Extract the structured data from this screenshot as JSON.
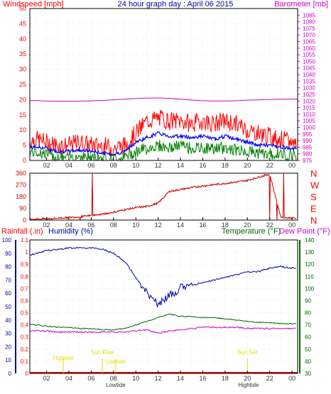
{
  "title": "24 hour graph day : April 06 2015",
  "colors": {
    "frame": "#000000",
    "grid": "#dddddd",
    "wind": "#ff0000",
    "gust_mid": "#0000ff",
    "wind_low": "#008000",
    "barometer": "#cc00cc",
    "direction": "#cc0000",
    "rainfall": "#ff0000",
    "humidity": "#0000aa",
    "temperature": "#006600",
    "dewpoint": "#cc00cc",
    "tide": "#dddd00"
  },
  "chart_data": [
    {
      "type": "line",
      "panel": "wind_barometer",
      "ylabel_left": "Windspeed [mph]",
      "ylabel_right": "Barometer [mb]",
      "ylim_left": [
        0,
        50
      ],
      "ylim_right": [
        975,
        1090
      ],
      "left_ticks": [
        "0",
        "5",
        "10",
        "15",
        "20",
        "25",
        "30",
        "35",
        "40",
        "45",
        "50"
      ],
      "right_ticks": [
        "975",
        "980",
        "985",
        "990",
        "995",
        "1000",
        "1005",
        "1010",
        "1015",
        "1020",
        "1025",
        "1030",
        "1035",
        "1040",
        "1045",
        "1050",
        "1055",
        "1060",
        "1065",
        "1070",
        "1075",
        "1080",
        "1085"
      ],
      "x_ticks": [
        "02",
        "04",
        "06",
        "08",
        "10",
        "12",
        "14",
        "16",
        "18",
        "20",
        "22",
        "00"
      ],
      "series": [
        {
          "key": "barometer",
          "axis": "right",
          "x": [
            0,
            1,
            2,
            3,
            4,
            5,
            6,
            7,
            8,
            9,
            10,
            11,
            12,
            13,
            14,
            15,
            16,
            17,
            18,
            19,
            20,
            21,
            22,
            23,
            24
          ],
          "values": [
            1020.5,
            1020.3,
            1020.0,
            1019.8,
            1019.8,
            1019.9,
            1020.1,
            1020.4,
            1020.9,
            1021.4,
            1021.9,
            1022.2,
            1022.3,
            1022.0,
            1021.4,
            1020.7,
            1020.2,
            1020.0,
            1020.0,
            1020.2,
            1020.6,
            1020.9,
            1021.1,
            1021.3,
            1021.5
          ]
        },
        {
          "key": "gust",
          "axis": "left",
          "x": [
            0,
            1,
            2,
            3,
            4,
            5,
            6,
            7,
            8,
            9,
            10,
            11,
            12,
            13,
            14,
            15,
            16,
            17,
            18,
            19,
            20,
            21,
            22,
            23,
            24
          ],
          "values": [
            6,
            7,
            6,
            5,
            5,
            6,
            5,
            5,
            4,
            5,
            9,
            13,
            14,
            13,
            13,
            12,
            13,
            12,
            13,
            12,
            10,
            9,
            8,
            7,
            6
          ]
        },
        {
          "key": "average",
          "axis": "left",
          "x": [
            0,
            1,
            2,
            3,
            4,
            5,
            6,
            7,
            8,
            9,
            10,
            11,
            12,
            13,
            14,
            15,
            16,
            17,
            18,
            19,
            20,
            21,
            22,
            23,
            24
          ],
          "values": [
            4,
            4.5,
            4,
            3,
            3,
            3.5,
            3,
            2.5,
            2,
            3,
            6,
            7.5,
            9,
            8,
            8,
            7.5,
            8,
            7,
            8,
            7,
            6,
            5,
            5,
            4.5,
            4
          ]
        },
        {
          "key": "wind_low",
          "axis": "left",
          "x": [
            0,
            1,
            2,
            3,
            4,
            5,
            6,
            7,
            8,
            9,
            10,
            11,
            12,
            13,
            14,
            15,
            16,
            17,
            18,
            19,
            20,
            21,
            22,
            23,
            24
          ],
          "values": [
            2,
            3,
            2,
            1,
            1,
            1.5,
            1,
            1,
            0.5,
            1,
            3,
            4,
            5,
            4,
            5,
            4,
            4,
            4,
            4,
            3.5,
            3,
            2.5,
            2,
            2,
            2
          ]
        }
      ]
    },
    {
      "type": "line",
      "panel": "wind_direction",
      "ylim": [
        0,
        360
      ],
      "left_ticks": [
        "0",
        "90",
        "180",
        "270",
        "360"
      ],
      "right_ticks": [
        "N",
        "W",
        "S",
        "E",
        "N"
      ],
      "x_ticks": [
        "02",
        "04",
        "06",
        "08",
        "10",
        "12",
        "14",
        "16",
        "18",
        "20",
        "22",
        "00"
      ],
      "series": [
        {
          "key": "direction",
          "x": [
            0,
            1,
            2,
            3,
            4,
            5,
            6,
            7,
            8,
            9,
            10,
            11,
            12,
            13,
            14,
            15,
            16,
            17,
            18,
            19,
            20,
            21,
            22,
            23,
            24
          ],
          "values": [
            5,
            8,
            10,
            15,
            20,
            25,
            35,
            45,
            60,
            80,
            95,
            105,
            130,
            220,
            235,
            250,
            262,
            272,
            282,
            292,
            305,
            330,
            355,
            20,
            15
          ]
        }
      ]
    },
    {
      "type": "line",
      "panel": "rain_humidity_temp",
      "labels": {
        "rainfall": "Rainfall (.in)",
        "humidity": "Humidity (%)",
        "temperature": "Temperature (°F)",
        "dewpoint": "Dew Point (°F)"
      },
      "ylim_left_rain": [
        0,
        1.1
      ],
      "ylim_left_humidity": [
        0,
        100
      ],
      "ylim_right": [
        30,
        140
      ],
      "left_ticks_rain": [
        "0",
        "0.1",
        "0.2",
        "0.3",
        "0.4",
        "0.5",
        "0.6",
        "0.7",
        "0.8",
        "0.9",
        "1",
        "1.1"
      ],
      "left_ticks_humidity": [
        "0",
        "10",
        "20",
        "30",
        "40",
        "50",
        "60",
        "70",
        "80",
        "90",
        "100"
      ],
      "right_ticks": [
        "30",
        "40",
        "50",
        "60",
        "70",
        "80",
        "90",
        "100",
        "110",
        "120",
        "130",
        "140"
      ],
      "x_ticks": [
        "02",
        "04",
        "06",
        "08",
        "10",
        "12",
        "14",
        "16",
        "18",
        "20",
        "22",
        "00"
      ],
      "series": [
        {
          "key": "humidity",
          "axis": "humidity",
          "x": [
            0,
            1,
            2,
            3,
            4,
            5,
            6,
            7,
            8,
            9,
            10,
            11,
            12,
            13,
            14,
            15,
            16,
            17,
            18,
            19,
            20,
            21,
            22,
            23,
            24
          ],
          "values": [
            87,
            90,
            92,
            93,
            94,
            94,
            94,
            93,
            90,
            84,
            72,
            60,
            52,
            58,
            64,
            66,
            68,
            70,
            72,
            74,
            76,
            76,
            79,
            80,
            79
          ]
        },
        {
          "key": "temperature",
          "axis": "right",
          "x": [
            0,
            1,
            2,
            3,
            4,
            5,
            6,
            7,
            8,
            9,
            10,
            11,
            12,
            13,
            14,
            15,
            16,
            17,
            18,
            19,
            20,
            21,
            22,
            23,
            24
          ],
          "values": [
            71,
            70,
            69,
            68,
            68,
            67,
            67,
            66,
            66,
            67,
            70,
            73,
            76,
            79,
            77,
            77,
            76,
            76,
            75,
            74,
            73,
            72,
            72,
            71,
            71
          ]
        },
        {
          "key": "dewpoint",
          "axis": "right",
          "x": [
            0,
            1,
            2,
            3,
            4,
            5,
            6,
            7,
            8,
            9,
            10,
            11,
            12,
            13,
            14,
            15,
            16,
            17,
            18,
            19,
            20,
            21,
            22,
            23,
            24
          ],
          "values": [
            65,
            65,
            65,
            64,
            64,
            64,
            64,
            64,
            64,
            64,
            65,
            66,
            63,
            65,
            66,
            67,
            68,
            68,
            68,
            68,
            67,
            67,
            67,
            67,
            67
          ]
        },
        {
          "key": "rainfall",
          "axis": "rain",
          "x": [
            0,
            24
          ],
          "values": [
            0,
            0
          ]
        }
      ],
      "annotations": [
        {
          "text": "Hightide",
          "hour": 3.5
        },
        {
          "text": "Sun Rise",
          "hour": 7.0
        },
        {
          "text": "Lowtide",
          "hour": 8.2
        },
        {
          "text": "Sun Set",
          "hour": 20.0
        }
      ],
      "bottom_labels": [
        "Lowtide",
        "Hightide"
      ]
    }
  ]
}
